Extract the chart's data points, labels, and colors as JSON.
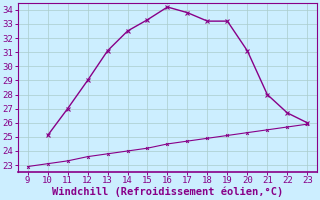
{
  "x": [
    9,
    10,
    11,
    12,
    13,
    14,
    15,
    16,
    17,
    18,
    19,
    20,
    21,
    22,
    23
  ],
  "y_main": [
    null,
    25.1,
    27.0,
    29.0,
    31.1,
    32.5,
    33.3,
    34.2,
    33.8,
    33.2,
    33.2,
    31.1,
    28.0,
    26.7,
    26.0
  ],
  "y_line2": [
    22.9,
    23.1,
    23.3,
    23.6,
    23.8,
    24.0,
    24.2,
    24.5,
    24.7,
    24.9,
    25.1,
    25.3,
    25.5,
    25.7,
    25.9
  ],
  "line_color": "#880088",
  "bg_color": "#cceeff",
  "grid_color": "#aacccc",
  "xlabel": "Windchill (Refroidissement éolien,°C)",
  "xlim": [
    8.5,
    23.5
  ],
  "ylim": [
    22.5,
    34.5
  ],
  "xticks": [
    9,
    10,
    11,
    12,
    13,
    14,
    15,
    16,
    17,
    18,
    19,
    20,
    21,
    22,
    23
  ],
  "yticks": [
    23,
    24,
    25,
    26,
    27,
    28,
    29,
    30,
    31,
    32,
    33,
    34
  ],
  "font_size": 6.5,
  "xlabel_font_size": 7.5
}
